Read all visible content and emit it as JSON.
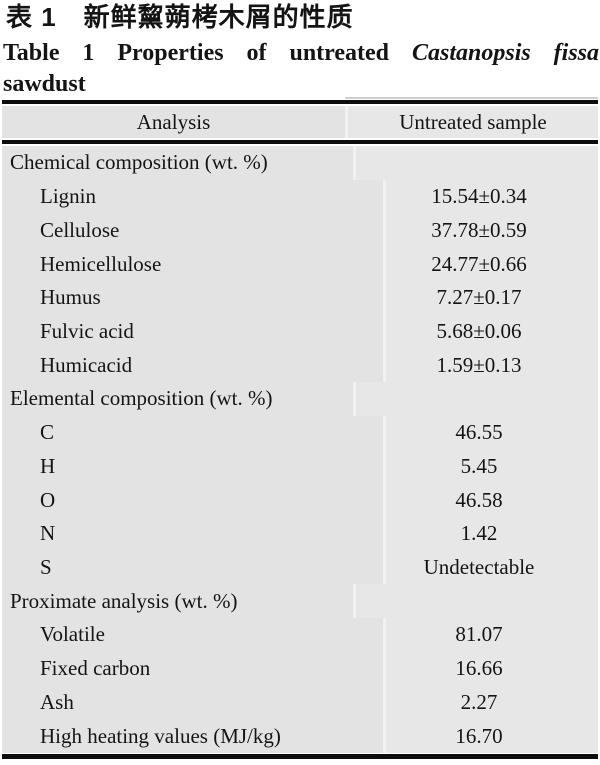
{
  "caption": {
    "title_zh": "表 1　新鲜黧蒴栲木屑的性质",
    "title_en_part1": "Table 1  Properties of untreated",
    "title_en_species_italic": "Castanopsis fissa",
    "title_en_line2": "sawdust"
  },
  "table": {
    "columns": [
      "Analysis",
      "Untreated sample"
    ],
    "rows": [
      {
        "type": "section",
        "label": "Chemical composition (wt. %)",
        "value": ""
      },
      {
        "type": "item",
        "label": "Lignin",
        "value": "15.54±0.34"
      },
      {
        "type": "item",
        "label": "Cellulose",
        "value": "37.78±0.59"
      },
      {
        "type": "item",
        "label": "Hemicellulose",
        "value": "24.77±0.66"
      },
      {
        "type": "item",
        "label": "Humus",
        "value": "7.27±0.17"
      },
      {
        "type": "item",
        "label": "Fulvic acid",
        "value": "5.68±0.06"
      },
      {
        "type": "item",
        "label": "Humicacid",
        "value": "1.59±0.13"
      },
      {
        "type": "section",
        "label": "Elemental composition (wt. %)",
        "value": ""
      },
      {
        "type": "item",
        "label": "C",
        "value": "46.55"
      },
      {
        "type": "item",
        "label": "H",
        "value": "5.45"
      },
      {
        "type": "item",
        "label": "O",
        "value": "46.58"
      },
      {
        "type": "item",
        "label": "N",
        "value": "1.42"
      },
      {
        "type": "item",
        "label": "S",
        "value": "Undetectable"
      },
      {
        "type": "section",
        "label": "Proximate analysis (wt. %)",
        "value": ""
      },
      {
        "type": "item",
        "label": "Volatile",
        "value": "81.07"
      },
      {
        "type": "item",
        "label": "Fixed carbon",
        "value": "16.66"
      },
      {
        "type": "item",
        "label": "Ash",
        "value": "2.27"
      },
      {
        "type": "item",
        "label": "High heating values (MJ/kg)",
        "value": "16.70"
      }
    ]
  },
  "colors": {
    "cell_left_bg": "#e3e3e3",
    "cell_right_bg": "#e7e7e7",
    "rule": "#0c0c0c"
  }
}
